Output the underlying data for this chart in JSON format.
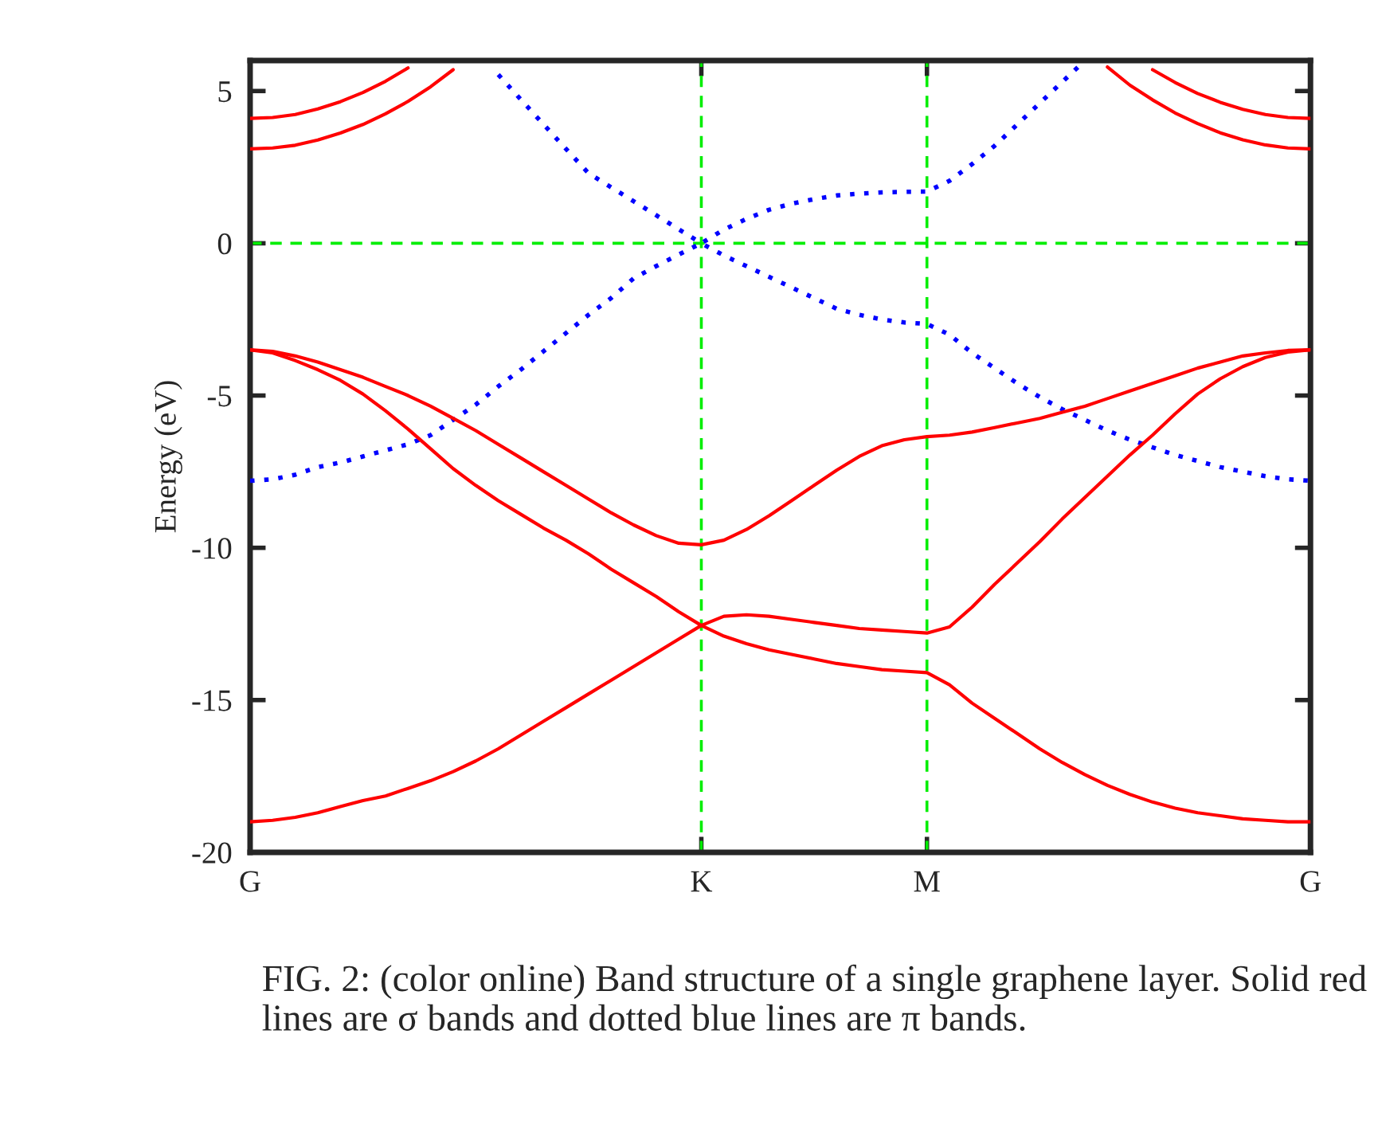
{
  "chart_data": {
    "type": "line",
    "ylabel": "Energy (eV)",
    "ylim": [
      -20,
      6
    ],
    "categories": [
      "G",
      null,
      null,
      null,
      null,
      null,
      null,
      null,
      null,
      null,
      null,
      null,
      null,
      null,
      null,
      null,
      null,
      null,
      null,
      null,
      "K",
      null,
      null,
      null,
      null,
      null,
      null,
      null,
      null,
      null,
      "M",
      null,
      null,
      null,
      null,
      null,
      null,
      null,
      null,
      null,
      null,
      null,
      null,
      null,
      null,
      null,
      null,
      "G"
    ],
    "yticks": [
      -20,
      -15,
      -10,
      -5,
      0,
      5
    ],
    "grid": false,
    "legend": false,
    "marker": "none",
    "series": [
      {
        "color": "#ff0000",
        "line_style": "solid",
        "values": [
          4.1,
          4.13,
          4.23,
          4.41,
          4.65,
          4.95,
          5.32,
          5.76,
          null,
          null,
          null,
          null,
          null,
          null,
          null,
          null,
          null,
          null,
          null,
          null,
          null,
          null,
          null,
          null,
          null,
          null,
          null,
          null,
          null,
          null,
          null,
          null,
          null,
          null,
          null,
          null,
          null,
          null,
          null,
          null,
          null,
          null,
          null,
          null,
          null,
          null,
          null,
          null
        ]
      },
      {
        "color": "#ff0000",
        "line_style": "solid",
        "values": [
          3.1,
          3.13,
          3.22,
          3.39,
          3.62,
          3.9,
          4.25,
          4.66,
          5.14,
          5.7,
          null,
          null,
          null,
          null,
          null,
          null,
          null,
          null,
          null,
          null,
          null,
          null,
          null,
          null,
          null,
          null,
          null,
          null,
          null,
          null,
          null,
          null,
          null,
          null,
          null,
          null,
          null,
          null,
          null,
          null,
          null,
          null,
          null,
          null,
          null,
          null,
          null,
          null
        ]
      },
      {
        "color": "#ff0000",
        "line_style": "solid",
        "values": [
          null,
          null,
          null,
          null,
          null,
          null,
          null,
          null,
          null,
          null,
          null,
          null,
          null,
          null,
          null,
          null,
          null,
          null,
          null,
          null,
          null,
          null,
          null,
          null,
          null,
          null,
          null,
          null,
          null,
          null,
          null,
          null,
          null,
          null,
          null,
          null,
          null,
          null,
          null,
          null,
          5.7,
          5.28,
          4.92,
          4.63,
          4.4,
          4.23,
          4.13,
          4.1
        ]
      },
      {
        "color": "#ff0000",
        "line_style": "solid",
        "values": [
          null,
          null,
          null,
          null,
          null,
          null,
          null,
          null,
          null,
          null,
          null,
          null,
          null,
          null,
          null,
          null,
          null,
          null,
          null,
          null,
          null,
          null,
          null,
          null,
          null,
          null,
          null,
          null,
          null,
          null,
          null,
          null,
          null,
          null,
          null,
          null,
          null,
          null,
          5.79,
          5.19,
          4.71,
          4.28,
          3.93,
          3.63,
          3.4,
          3.23,
          3.13,
          3.1
        ]
      },
      {
        "color": "#0000ff",
        "line_style": "dotted",
        "values": [
          null,
          null,
          null,
          null,
          null,
          null,
          null,
          null,
          null,
          null,
          null,
          5.54,
          4.72,
          3.91,
          3.1,
          2.3,
          1.84,
          1.38,
          0.92,
          0.46,
          0,
          0.45,
          0.8,
          1.1,
          1.3,
          1.45,
          1.57,
          1.63,
          1.67,
          1.69,
          1.7,
          2.05,
          2.6,
          3.2,
          3.9,
          4.6,
          5.3,
          6.0,
          null,
          null,
          null,
          null,
          null,
          null,
          null,
          null,
          null,
          null
        ]
      },
      {
        "color": "#0000ff",
        "line_style": "dotted",
        "values": [
          -7.8,
          -7.75,
          -7.6,
          -7.35,
          -7.2,
          -7.0,
          -6.8,
          -6.6,
          -6.3,
          -5.8,
          -5.3,
          -4.7,
          -4.15,
          -3.55,
          -2.95,
          -2.35,
          -1.8,
          -1.15,
          -0.75,
          -0.37,
          0,
          -0.4,
          -0.75,
          -1.1,
          -1.45,
          -1.8,
          -2.15,
          -2.35,
          -2.5,
          -2.6,
          -2.65,
          -3.0,
          -3.6,
          -4.1,
          -4.6,
          -5.05,
          -5.45,
          -5.8,
          -6.15,
          -6.45,
          -6.7,
          -6.95,
          -7.15,
          -7.35,
          -7.5,
          -7.65,
          -7.75,
          -7.8
        ]
      },
      {
        "color": "#ff0000",
        "line_style": "solid",
        "values": [
          -3.5,
          -3.55,
          -3.7,
          -3.9,
          -4.15,
          -4.4,
          -4.7,
          -5.0,
          -5.35,
          -5.75,
          -6.15,
          -6.6,
          -7.05,
          -7.5,
          -7.95,
          -8.4,
          -8.85,
          -9.25,
          -9.6,
          -9.85,
          -9.9,
          -9.75,
          -9.4,
          -8.95,
          -8.45,
          -7.95,
          -7.45,
          -7.0,
          -6.65,
          -6.45,
          -6.35,
          -6.3,
          -6.2,
          -6.05,
          -5.9,
          -5.75,
          -5.55,
          -5.35,
          -5.1,
          -4.85,
          -4.6,
          -4.35,
          -4.1,
          -3.9,
          -3.7,
          -3.6,
          -3.52,
          -3.5
        ]
      },
      {
        "color": "#ff0000",
        "line_style": "solid",
        "values": [
          -3.5,
          -3.6,
          -3.85,
          -4.15,
          -4.5,
          -4.95,
          -5.5,
          -6.1,
          -6.75,
          -7.4,
          -7.95,
          -8.45,
          -8.9,
          -9.35,
          -9.75,
          -10.2,
          -10.7,
          -11.15,
          -11.6,
          -12.1,
          -12.55,
          -12.9,
          -13.15,
          -13.35,
          -13.5,
          -13.65,
          -13.8,
          -13.9,
          -14.0,
          -14.05,
          -14.1,
          -14.5,
          -15.1,
          -15.6,
          -16.1,
          -16.6,
          -17.05,
          -17.45,
          -17.8,
          -18.1,
          -18.35,
          -18.55,
          -18.7,
          -18.8,
          -18.9,
          -18.95,
          -19.0,
          -19.0
        ]
      },
      {
        "color": "#ff0000",
        "line_style": "solid",
        "values": [
          -19.0,
          -18.95,
          -18.85,
          -18.7,
          -18.5,
          -18.3,
          -18.15,
          -17.9,
          -17.65,
          -17.35,
          -17.0,
          -16.6,
          -16.15,
          -15.7,
          -15.25,
          -14.8,
          -14.35,
          -13.9,
          -13.45,
          -13.0,
          -12.55,
          -12.25,
          -12.2,
          -12.25,
          -12.35,
          -12.45,
          -12.55,
          -12.65,
          -12.7,
          -12.75,
          -12.8,
          -12.6,
          -11.95,
          -11.2,
          -10.5,
          -9.8,
          -9.05,
          -8.35,
          -7.65,
          -6.95,
          -6.3,
          -5.6,
          -4.95,
          -4.45,
          -4.05,
          -3.75,
          -3.57,
          -3.5
        ]
      }
    ],
    "ref_lines": [
      {
        "axis": "x",
        "value": "K",
        "color": "#00ee00",
        "line_style": "dashed"
      },
      {
        "axis": "x",
        "value": "M",
        "color": "#00ee00",
        "line_style": "dashed"
      },
      {
        "axis": "y",
        "value": 0,
        "color": "#00ee00",
        "line_style": "dashed"
      }
    ],
    "annotations": [
      "FIG. 2: (color online) Band structure of a single graphene layer. Solid red lines are σ bands and dotted blue lines are π bands."
    ]
  }
}
